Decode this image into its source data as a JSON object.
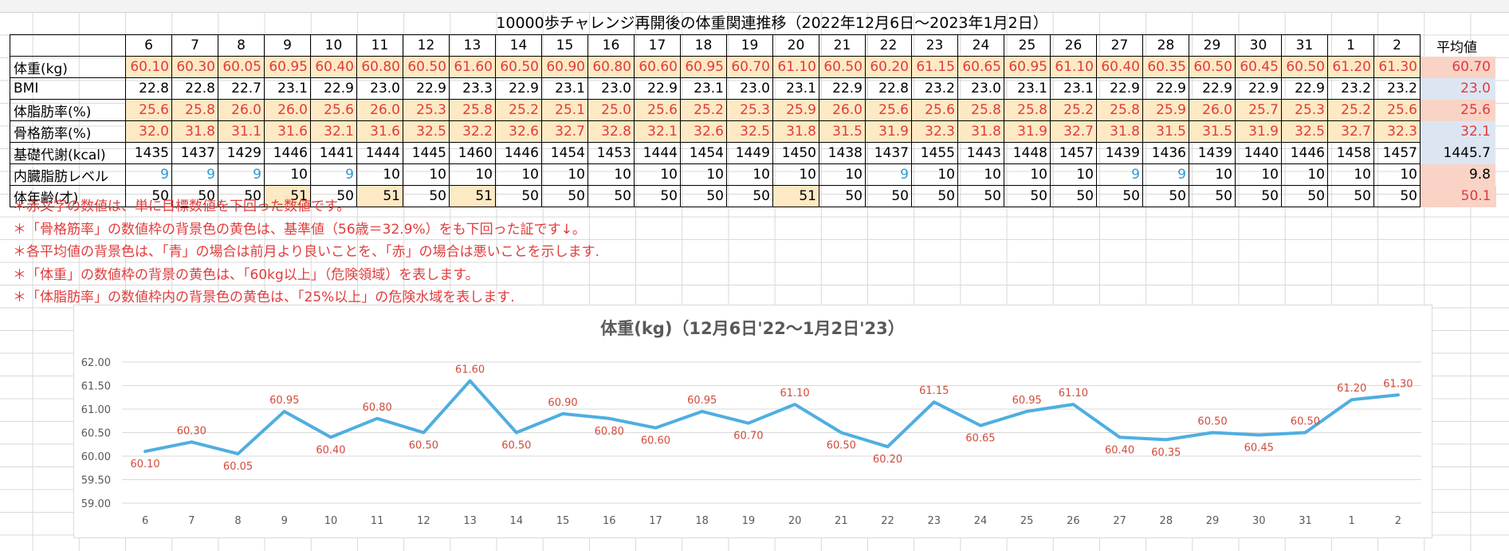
{
  "title": "10000歩チャレンジ再開後の体重関連推移（2022年12月6日～2023年1月2日）",
  "avg_header": "平均値",
  "days": [
    "6",
    "7",
    "8",
    "9",
    "10",
    "11",
    "12",
    "13",
    "14",
    "15",
    "16",
    "17",
    "18",
    "19",
    "20",
    "21",
    "22",
    "23",
    "24",
    "25",
    "26",
    "27",
    "28",
    "29",
    "30",
    "31",
    "1",
    "2"
  ],
  "rows": [
    {
      "label": "体重(kg)",
      "values": [
        "60.10",
        "60.30",
        "60.05",
        "60.95",
        "60.40",
        "60.80",
        "60.50",
        "61.60",
        "60.50",
        "60.90",
        "60.80",
        "60.60",
        "60.95",
        "60.70",
        "61.10",
        "60.50",
        "60.20",
        "61.15",
        "60.65",
        "60.95",
        "61.10",
        "60.40",
        "60.35",
        "60.50",
        "60.45",
        "60.50",
        "61.20",
        "61.30"
      ],
      "avg": "60.70"
    },
    {
      "label": "BMI",
      "values": [
        "22.8",
        "22.8",
        "22.7",
        "23.1",
        "22.9",
        "23.0",
        "22.9",
        "23.3",
        "22.9",
        "23.1",
        "23.0",
        "22.9",
        "23.1",
        "23.0",
        "23.1",
        "22.9",
        "22.8",
        "23.2",
        "23.0",
        "23.1",
        "23.1",
        "22.9",
        "22.9",
        "22.9",
        "22.9",
        "22.9",
        "23.2",
        "23.2"
      ],
      "avg": "23.0"
    },
    {
      "label": "体脂肪率(%)",
      "values": [
        "25.6",
        "25.8",
        "26.0",
        "26.0",
        "25.6",
        "26.0",
        "25.3",
        "25.8",
        "25.2",
        "25.1",
        "25.0",
        "25.6",
        "25.2",
        "25.3",
        "25.9",
        "26.0",
        "25.6",
        "25.6",
        "25.8",
        "25.8",
        "25.2",
        "25.8",
        "25.9",
        "26.0",
        "25.7",
        "25.3",
        "25.2",
        "25.6"
      ],
      "avg": "25.6"
    },
    {
      "label": "骨格筋率(%)",
      "values": [
        "32.0",
        "31.8",
        "31.1",
        "31.6",
        "32.1",
        "31.6",
        "32.5",
        "32.2",
        "32.6",
        "32.7",
        "32.8",
        "32.1",
        "32.6",
        "32.5",
        "31.8",
        "31.5",
        "31.9",
        "32.3",
        "31.8",
        "31.9",
        "32.7",
        "31.8",
        "31.5",
        "31.5",
        "31.9",
        "32.5",
        "32.7",
        "32.3"
      ],
      "avg": "32.1"
    },
    {
      "label": "基礎代謝(kcal)",
      "values": [
        "1435",
        "1437",
        "1429",
        "1446",
        "1441",
        "1444",
        "1445",
        "1460",
        "1446",
        "1454",
        "1453",
        "1444",
        "1454",
        "1449",
        "1450",
        "1438",
        "1437",
        "1455",
        "1443",
        "1448",
        "1457",
        "1439",
        "1436",
        "1439",
        "1440",
        "1446",
        "1458",
        "1457"
      ],
      "avg": "1445.7"
    },
    {
      "label": "内臓脂肪レベル",
      "values": [
        "9",
        "9",
        "9",
        "10",
        "9",
        "10",
        "10",
        "10",
        "10",
        "10",
        "10",
        "10",
        "10",
        "10",
        "10",
        "10",
        "9",
        "10",
        "10",
        "10",
        "10",
        "9",
        "9",
        "10",
        "10",
        "10",
        "10",
        "10"
      ],
      "avg": "9.8"
    },
    {
      "label": "体年齢(才)",
      "values": [
        "50",
        "50",
        "50",
        "51",
        "50",
        "51",
        "50",
        "51",
        "50",
        "50",
        "50",
        "50",
        "50",
        "50",
        "51",
        "50",
        "50",
        "50",
        "50",
        "50",
        "50",
        "50",
        "50",
        "50",
        "50",
        "50",
        "50",
        "50"
      ],
      "avg": "50.1"
    }
  ],
  "notes": [
    "＊赤文字の数値は、単に目標数値を下回った数値です。",
    "＊「骨格筋率」の数値枠の背景色の黄色は、基準値（56歳＝32.9%）をも下回った証です↓。",
    "＊各平均値の背景色は、「青」の場合は前月より良いことを、「赤」の場合は悪いことを示します.",
    "＊「体重」の数値枠の背景の黄色は、「60kg以上」（危険領域）を表します。",
    "＊「体脂肪率」の数値枠内の背景色の黄色は、「25%以上」の危険水域を表します."
  ],
  "colors": {
    "line": "#4faee0",
    "data_label": "#d24b3c",
    "highlight_yellow": "#fde9c3",
    "avg_red": "#f8d3c6",
    "avg_blue": "#dce6f2",
    "blue_text": "#2e9ad6"
  },
  "chart_data": {
    "type": "line",
    "title": "体重(kg)（12月6日'22～1月2日'23）",
    "categories": [
      "6",
      "7",
      "8",
      "9",
      "10",
      "11",
      "12",
      "13",
      "14",
      "15",
      "16",
      "17",
      "18",
      "19",
      "20",
      "21",
      "22",
      "23",
      "24",
      "25",
      "26",
      "27",
      "28",
      "29",
      "30",
      "31",
      "1",
      "2"
    ],
    "series": [
      {
        "values": [
          60.1,
          60.3,
          60.05,
          60.95,
          60.4,
          60.8,
          60.5,
          61.6,
          60.5,
          60.9,
          60.8,
          60.6,
          60.95,
          60.7,
          61.1,
          60.5,
          60.2,
          61.15,
          60.65,
          60.95,
          61.1,
          60.4,
          60.35,
          60.5,
          60.45,
          60.5,
          61.2,
          61.3
        ]
      }
    ],
    "data_labels": [
      "60.10",
      "60.30",
      "60.05",
      "60.95",
      "60.40",
      "60.80",
      "60.50",
      "61.60",
      "60.50",
      "60.90",
      "60.80",
      "60.60",
      "60.95",
      "60.70",
      "61.10",
      "60.50",
      "60.20",
      "61.15",
      "60.65",
      "60.95",
      "61.10",
      "60.40",
      "60.35",
      "60.50",
      "60.45",
      "60.50",
      "61.20",
      "61.30"
    ],
    "y_ticks": [
      "62.00",
      "61.50",
      "61.00",
      "60.50",
      "60.00",
      "59.50",
      "59.00"
    ],
    "ylim": [
      59.0,
      62.0
    ],
    "grid": true,
    "legend": "none"
  }
}
